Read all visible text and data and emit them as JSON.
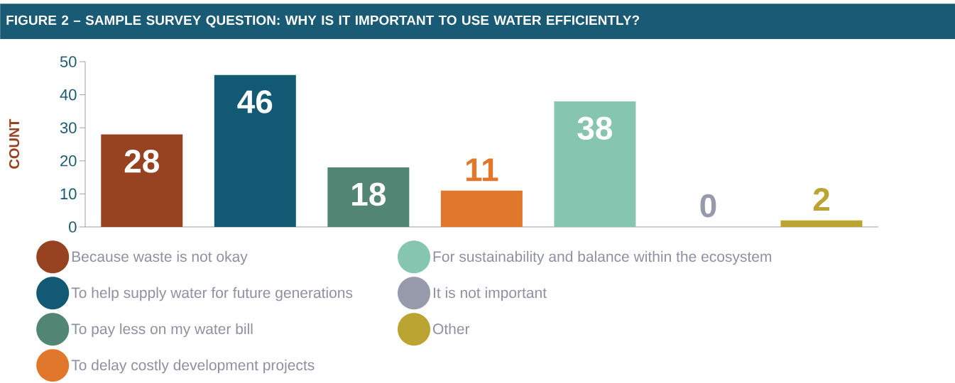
{
  "chart_data": {
    "type": "bar",
    "title": "FIGURE 2 – SAMPLE SURVEY QUESTION: WHY IS IT IMPORTANT TO USE WATER EFFICIENTLY?",
    "ylabel": "COUNT",
    "categories": [
      null,
      null,
      null,
      null,
      null,
      null,
      null
    ],
    "series": [
      {
        "name": "Because waste is not okay",
        "color": "#974321",
        "values": [
          28,
          null,
          null,
          null,
          null,
          null,
          null
        ]
      },
      {
        "name": "To help supply water for future generations",
        "color": "#125a73",
        "values": [
          null,
          46,
          null,
          null,
          null,
          null,
          null
        ]
      },
      {
        "name": "To pay less on my water bill",
        "color": "#528573",
        "values": [
          null,
          null,
          18,
          null,
          null,
          null,
          null
        ]
      },
      {
        "name": "To delay costly development projects",
        "color": "#e0772b",
        "values": [
          null,
          null,
          null,
          11,
          null,
          null,
          null
        ]
      },
      {
        "name": "For sustainability and balance within the ecosystem",
        "color": "#86c6b1",
        "values": [
          null,
          null,
          null,
          null,
          38,
          null,
          null
        ]
      },
      {
        "name": "It is not important",
        "color": "#979aaa",
        "values": [
          null,
          null,
          null,
          null,
          null,
          0,
          null
        ]
      },
      {
        "name": "Other",
        "color": "#bba431",
        "values": [
          null,
          null,
          null,
          null,
          null,
          null,
          2
        ]
      }
    ],
    "ylim": [
      0,
      50
    ],
    "yticks": [
      0,
      10,
      20,
      30,
      40,
      50
    ],
    "data_labels": true,
    "legend": "bottom",
    "tick_labels": "y",
    "grid": false
  }
}
